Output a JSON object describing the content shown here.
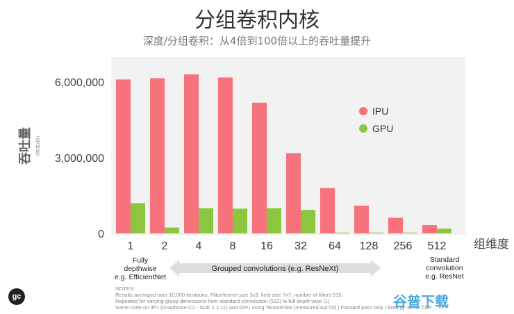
{
  "title": "分组卷积内核",
  "subtitle": "深度/分组卷积：从4倍到100倍以上的吞吐量提升",
  "chart_data": {
    "type": "bar",
    "categories": [
      "1",
      "2",
      "4",
      "8",
      "16",
      "32",
      "64",
      "128",
      "256",
      "512"
    ],
    "series": [
      {
        "name": "IPU",
        "color": "#f7737b",
        "values": [
          6100000,
          6150000,
          6300000,
          6180000,
          5180000,
          3180000,
          1800000,
          1100000,
          620000,
          330000
        ]
      },
      {
        "name": "GPU",
        "color": "#8cc63f",
        "values": [
          1200000,
          230000,
          1000000,
          980000,
          1000000,
          930000,
          20000,
          20000,
          20000,
          190000
        ]
      }
    ],
    "ylabel": "吞吐量",
    "ylabel_unit": "(样本/秒)",
    "xlabel": "组维度",
    "ylim": [
      0,
      6800000
    ],
    "yticks": [
      {
        "value": 0,
        "label": "0"
      },
      {
        "value": 3000000,
        "label": "3,000,000"
      },
      {
        "value": 6000000,
        "label": "6,000,000"
      }
    ],
    "legend_position": "top-right",
    "grid": false
  },
  "annotations": {
    "left_label": [
      "Fully",
      "depthwise",
      "e.g. EfficientNet"
    ],
    "middle_label": "Grouped convolutions (e.g. ResNeXt)",
    "right_label": [
      "Standard",
      "convolution",
      "e.g. ResNet"
    ]
  },
  "notes": [
    "NOTES:",
    "Results averaged over 10,000 iterations. Filter/kernel size 3x3, field size 7x7, number of filters 512,",
    "Repeated for varying group dimensions from standard convolution (512) to full depth-wise (1)",
    "Same code on IPU (Graphcore C2 - SDK 1.1.11) and GPU using TensorFlow (measured Apr'20) | Forward pass only | Both @ 300W TDP"
  ],
  "logo_text": "gc",
  "watermark": "谷普下载",
  "colors": {
    "ipu": "#f7737b",
    "gpu": "#8cc63f",
    "plot_bg": "#f2f2f2",
    "arrow": "#dddddd"
  }
}
